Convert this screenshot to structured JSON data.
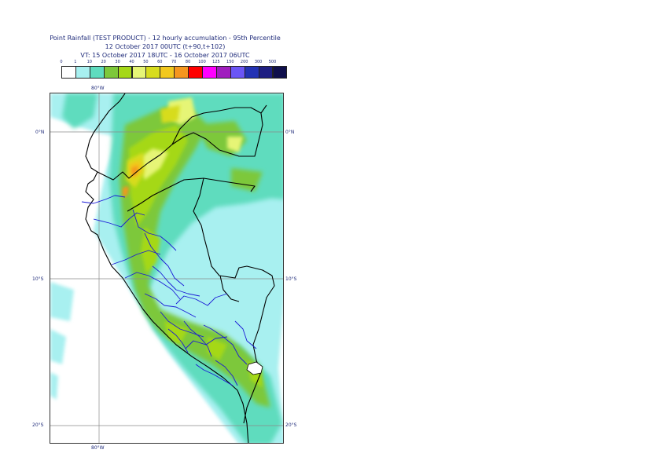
{
  "title": {
    "line1": "Point Rainfall (TEST PRODUCT) - 12 hourly accumulation - 95th Percentile",
    "line2": "12 October 2017 00UTC (t+90,t+102)",
    "line3": "VT: 15 October 2017 18UTC - 16 October 2017 06UTC"
  },
  "legend": {
    "thresholds": [
      "0",
      "1",
      "10",
      "20",
      "30",
      "40",
      "50",
      "60",
      "70",
      "80",
      "100",
      "125",
      "150",
      "200",
      "300",
      "500"
    ],
    "colors": [
      "#ffffff",
      "#a8f0f0",
      "#5fdcbe",
      "#7dc83a",
      "#a5d818",
      "#e6f576",
      "#d7dc1e",
      "#f2c81e",
      "#f5961e",
      "#ff0000",
      "#ff00ff",
      "#a01ebe",
      "#6b55f5",
      "#2332b4",
      "#1e1e82",
      "#0f0f4b"
    ]
  },
  "axes": {
    "lon_top": "80°W",
    "lon_bottom": "80°W",
    "lat_0_left": "0°N",
    "lat_0_right": "0°N",
    "lat_10_left": "10°S",
    "lat_10_right": "10°S",
    "lat_20_left": "20°S",
    "lat_20_right": "20°S"
  }
}
